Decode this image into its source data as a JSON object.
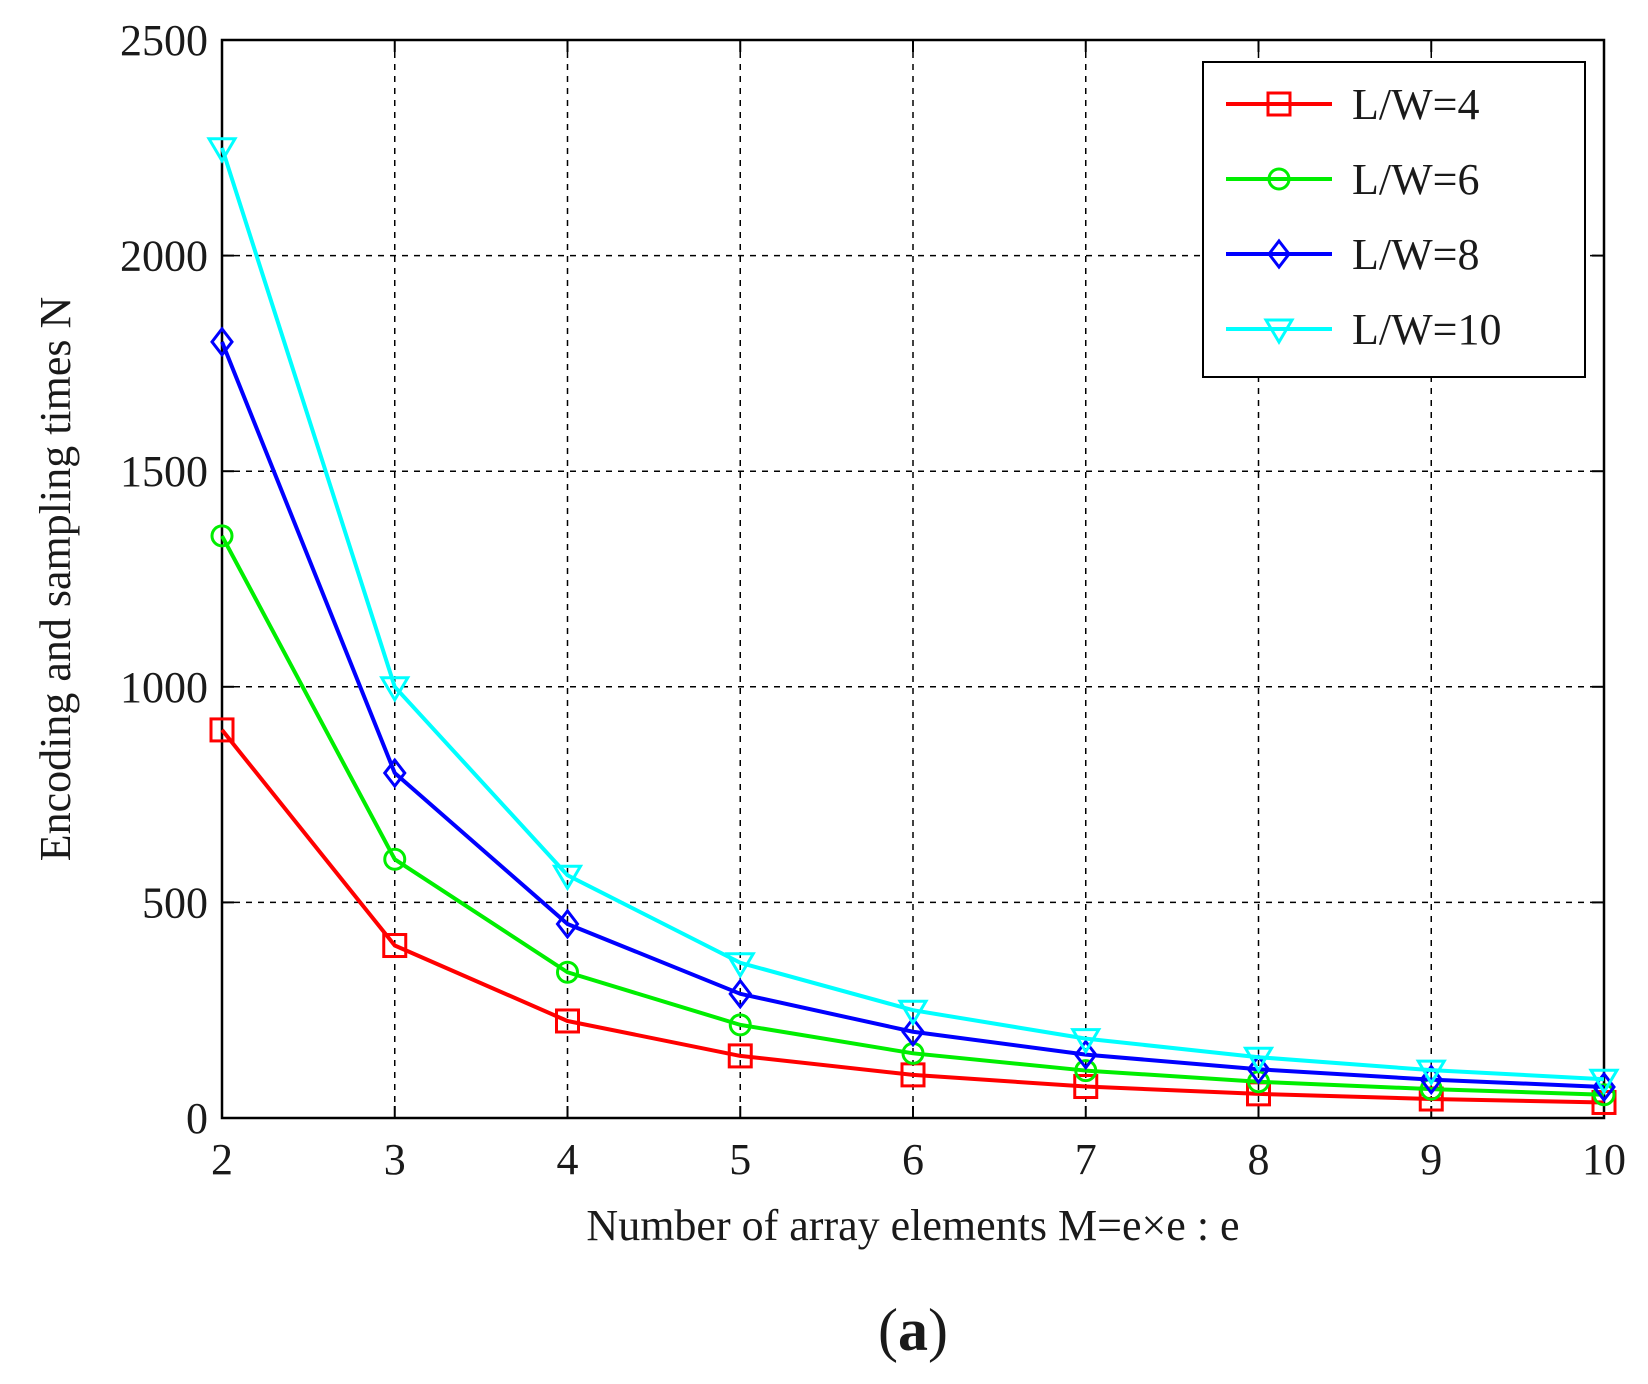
{
  "chart_data": {
    "type": "line",
    "x": [
      2,
      3,
      4,
      5,
      6,
      7,
      8,
      9,
      10
    ],
    "xlabel": "Number of array elements M=e×e : e",
    "ylabel": "Encoding and sampling times N",
    "xlim": [
      2,
      10
    ],
    "ylim": [
      0,
      2500
    ],
    "xticks": [
      "2",
      "3",
      "4",
      "5",
      "6",
      "7",
      "8",
      "9",
      "10"
    ],
    "yticks": [
      "0",
      "500",
      "1000",
      "1500",
      "2000",
      "2500"
    ],
    "grid": true,
    "legend_position": "top-right",
    "panel_label": {
      "open": "(",
      "letter": "a",
      "close": ")"
    },
    "series": [
      {
        "name": "L/W=4",
        "color": "#ff0000",
        "marker": "square",
        "values": [
          900,
          400,
          225,
          144,
          100,
          73,
          56,
          44,
          36
        ]
      },
      {
        "name": "L/W=6",
        "color": "#00ee00",
        "marker": "circle",
        "values": [
          1350,
          600,
          338,
          216,
          150,
          110,
          84,
          67,
          54
        ]
      },
      {
        "name": "L/W=8",
        "color": "#0000ff",
        "marker": "diamond",
        "values": [
          1800,
          800,
          450,
          288,
          200,
          147,
          113,
          89,
          72
        ]
      },
      {
        "name": "L/W=10",
        "color": "#00ffff",
        "marker": "triangle-down",
        "values": [
          2250,
          1000,
          563,
          360,
          250,
          184,
          141,
          111,
          90
        ]
      }
    ]
  }
}
